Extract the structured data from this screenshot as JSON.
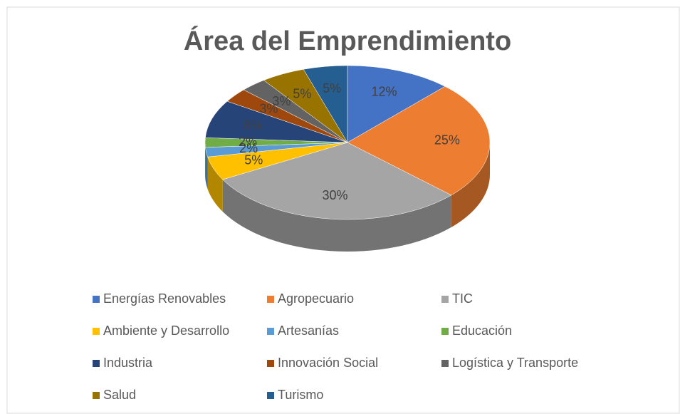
{
  "chart_data": {
    "type": "pie3d",
    "title": "Área del Emprendimiento",
    "categories": [
      "Energías Renovables",
      "Agropecuario",
      "TIC",
      "Ambiente y Desarrollo",
      "Artesanías",
      "Educación",
      "Industria",
      "Innovación Social",
      "Logística y Transporte",
      "Salud",
      "Turismo"
    ],
    "values": [
      12,
      25,
      30,
      5,
      2,
      2,
      8,
      3,
      3,
      5,
      5
    ],
    "value_labels": [
      "12%",
      "25%",
      "30%",
      "5%",
      "2%",
      "2%",
      "8%",
      "3%",
      "3%",
      "5%",
      "5%"
    ],
    "colors": [
      "#4472c4",
      "#ed7d31",
      "#a5a5a5",
      "#ffc000",
      "#5b9bd5",
      "#70ad47",
      "#264478",
      "#9e480e",
      "#636363",
      "#997300",
      "#255e91"
    ],
    "legend": "bottom"
  }
}
